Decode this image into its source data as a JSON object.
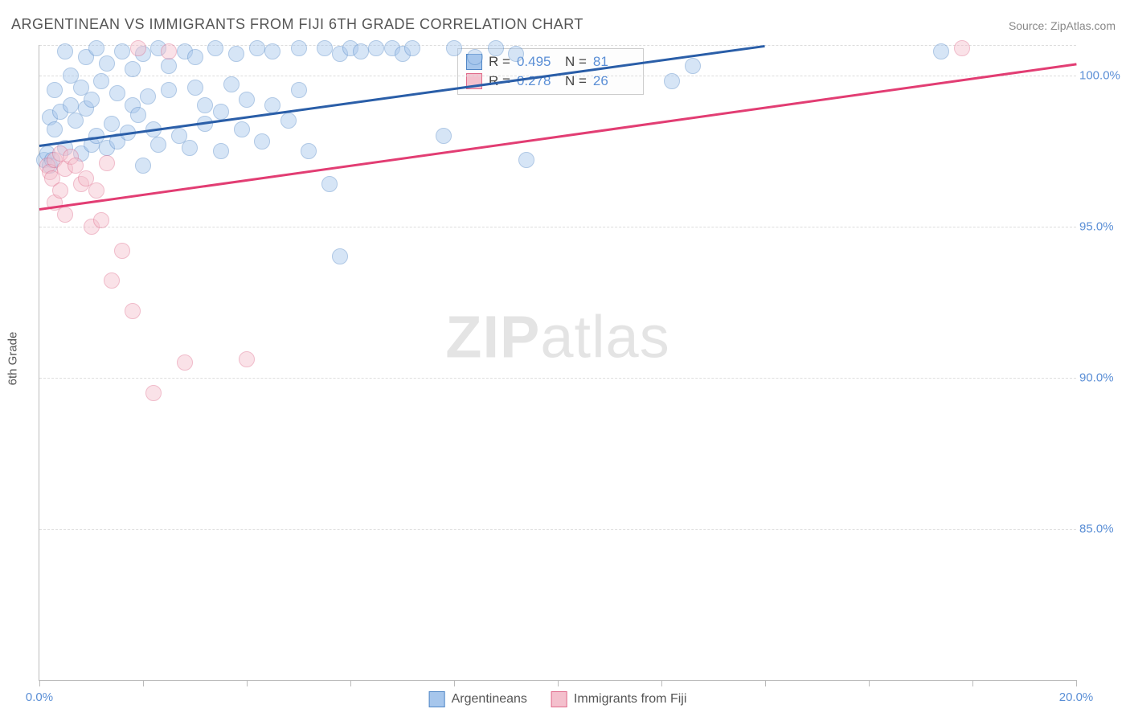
{
  "title": "ARGENTINEAN VS IMMIGRANTS FROM FIJI 6TH GRADE CORRELATION CHART",
  "source_label": "Source: ",
  "source_value": "ZipAtlas.com",
  "y_axis_title": "6th Grade",
  "watermark_a": "ZIP",
  "watermark_b": "atlas",
  "chart": {
    "type": "scatter",
    "xlim": [
      0,
      20
    ],
    "ylim": [
      80,
      101
    ],
    "x_ticks": [
      0,
      2,
      4,
      6,
      8,
      10,
      12,
      14,
      16,
      18,
      20
    ],
    "x_tick_labels": {
      "0": "0.0%",
      "20": "20.0%"
    },
    "y_gridlines": [
      85,
      90,
      95,
      100,
      101
    ],
    "y_tick_labels": {
      "85": "85.0%",
      "90": "90.0%",
      "95": "95.0%",
      "100": "100.0%"
    },
    "background_color": "#ffffff",
    "grid_color": "#dddddd",
    "axis_color": "#bbbbbb",
    "marker_radius": 10,
    "marker_opacity": 0.45,
    "series": [
      {
        "name": "Argentineans",
        "color_fill": "#a6c6ec",
        "color_stroke": "#4f86c6",
        "R": "0.495",
        "N": "81",
        "trend": {
          "x1": 0,
          "y1": 97.7,
          "x2": 14,
          "y2": 101,
          "color": "#2a5ea8",
          "width": 3
        },
        "points": [
          [
            0.1,
            97.2
          ],
          [
            0.15,
            97.4
          ],
          [
            0.2,
            97.0
          ],
          [
            0.2,
            98.6
          ],
          [
            0.25,
            97.2
          ],
          [
            0.3,
            99.5
          ],
          [
            0.3,
            98.2
          ],
          [
            0.4,
            98.8
          ],
          [
            0.5,
            100.8
          ],
          [
            0.5,
            97.6
          ],
          [
            0.6,
            99.0
          ],
          [
            0.6,
            100.0
          ],
          [
            0.7,
            98.5
          ],
          [
            0.8,
            99.6
          ],
          [
            0.8,
            97.4
          ],
          [
            0.9,
            98.9
          ],
          [
            0.9,
            100.6
          ],
          [
            1.0,
            99.2
          ],
          [
            1.0,
            97.7
          ],
          [
            1.1,
            100.9
          ],
          [
            1.1,
            98.0
          ],
          [
            1.2,
            99.8
          ],
          [
            1.3,
            97.6
          ],
          [
            1.3,
            100.4
          ],
          [
            1.4,
            98.4
          ],
          [
            1.5,
            99.4
          ],
          [
            1.5,
            97.8
          ],
          [
            1.6,
            100.8
          ],
          [
            1.7,
            98.1
          ],
          [
            1.8,
            99.0
          ],
          [
            1.8,
            100.2
          ],
          [
            1.9,
            98.7
          ],
          [
            2.0,
            100.7
          ],
          [
            2.0,
            97.0
          ],
          [
            2.1,
            99.3
          ],
          [
            2.2,
            98.2
          ],
          [
            2.3,
            100.9
          ],
          [
            2.3,
            97.7
          ],
          [
            2.5,
            99.5
          ],
          [
            2.5,
            100.3
          ],
          [
            2.7,
            98.0
          ],
          [
            2.8,
            100.8
          ],
          [
            2.9,
            97.6
          ],
          [
            3.0,
            99.6
          ],
          [
            3.0,
            100.6
          ],
          [
            3.2,
            98.4
          ],
          [
            3.2,
            99.0
          ],
          [
            3.4,
            100.9
          ],
          [
            3.5,
            98.8
          ],
          [
            3.5,
            97.5
          ],
          [
            3.7,
            99.7
          ],
          [
            3.8,
            100.7
          ],
          [
            3.9,
            98.2
          ],
          [
            4.0,
            99.2
          ],
          [
            4.2,
            100.9
          ],
          [
            4.3,
            97.8
          ],
          [
            4.5,
            99.0
          ],
          [
            4.5,
            100.8
          ],
          [
            4.8,
            98.5
          ],
          [
            5.0,
            99.5
          ],
          [
            5.0,
            100.9
          ],
          [
            5.2,
            97.5
          ],
          [
            5.5,
            100.9
          ],
          [
            5.6,
            96.4
          ],
          [
            5.8,
            94.0
          ],
          [
            5.8,
            100.7
          ],
          [
            6.0,
            100.9
          ],
          [
            6.2,
            100.8
          ],
          [
            6.5,
            100.9
          ],
          [
            6.8,
            100.9
          ],
          [
            7.0,
            100.7
          ],
          [
            7.2,
            100.9
          ],
          [
            7.8,
            98.0
          ],
          [
            8.0,
            100.9
          ],
          [
            8.4,
            100.6
          ],
          [
            8.8,
            100.9
          ],
          [
            9.2,
            100.7
          ],
          [
            9.4,
            97.2
          ],
          [
            12.2,
            99.8
          ],
          [
            12.6,
            100.3
          ],
          [
            17.4,
            100.8
          ]
        ]
      },
      {
        "name": "Immigrants from Fiji",
        "color_fill": "#f4c0cd",
        "color_stroke": "#e06b8b",
        "R": "0.278",
        "N": "26",
        "trend": {
          "x1": 0,
          "y1": 95.6,
          "x2": 20,
          "y2": 100.4,
          "color": "#e23d73",
          "width": 3
        },
        "points": [
          [
            0.15,
            97.0
          ],
          [
            0.2,
            96.8
          ],
          [
            0.25,
            96.6
          ],
          [
            0.3,
            97.2
          ],
          [
            0.3,
            95.8
          ],
          [
            0.4,
            97.4
          ],
          [
            0.4,
            96.2
          ],
          [
            0.5,
            96.9
          ],
          [
            0.5,
            95.4
          ],
          [
            0.6,
            97.3
          ],
          [
            0.7,
            97.0
          ],
          [
            0.8,
            96.4
          ],
          [
            0.9,
            96.6
          ],
          [
            1.0,
            95.0
          ],
          [
            1.1,
            96.2
          ],
          [
            1.2,
            95.2
          ],
          [
            1.3,
            97.1
          ],
          [
            1.4,
            93.2
          ],
          [
            1.6,
            94.2
          ],
          [
            1.8,
            92.2
          ],
          [
            1.9,
            100.9
          ],
          [
            2.2,
            89.5
          ],
          [
            2.5,
            100.8
          ],
          [
            2.8,
            90.5
          ],
          [
            4.0,
            90.6
          ],
          [
            17.8,
            100.9
          ]
        ]
      }
    ]
  },
  "stats_box": {
    "rows": [
      {
        "sq_fill": "#a6c6ec",
        "sq_stroke": "#4f86c6",
        "r_label": "R =",
        "r_val": "0.495",
        "n_label": "N =",
        "n_val": "81"
      },
      {
        "sq_fill": "#f4c0cd",
        "sq_stroke": "#e06b8b",
        "r_label": "R =",
        "r_val": "0.278",
        "n_label": "N =",
        "n_val": "26"
      }
    ]
  },
  "legend": [
    {
      "sq_fill": "#a6c6ec",
      "sq_stroke": "#4f86c6",
      "label": "Argentineans"
    },
    {
      "sq_fill": "#f4c0cd",
      "sq_stroke": "#e06b8b",
      "label": "Immigrants from Fiji"
    }
  ]
}
